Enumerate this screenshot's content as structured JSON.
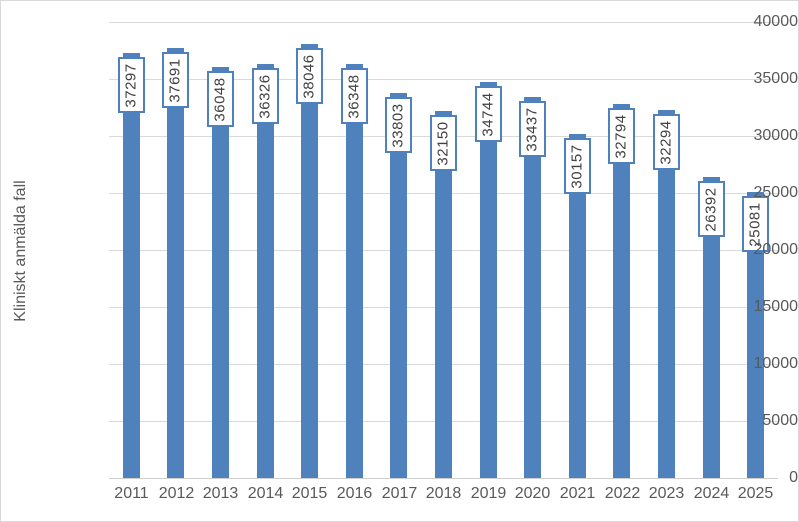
{
  "chart_data": {
    "type": "bar",
    "title": "",
    "xlabel": "",
    "ylabel": "Kliniskt anmälda fall",
    "categories": [
      "2011",
      "2012",
      "2013",
      "2014",
      "2015",
      "2016",
      "2017",
      "2018",
      "2019",
      "2020",
      "2021",
      "2022",
      "2023",
      "2024",
      "2025"
    ],
    "values": [
      37297,
      37691,
      36048,
      36326,
      38046,
      36348,
      33803,
      32150,
      34744,
      33437,
      30157,
      32794,
      32294,
      26392,
      25081
    ],
    "ylim": [
      0,
      40000
    ],
    "yticks": [
      0,
      5000,
      10000,
      15000,
      20000,
      25000,
      30000,
      35000,
      40000
    ],
    "grid": true,
    "legend": "none",
    "colors": {
      "bar_fill": "#4F81BD",
      "label_box_fill": "#FFFFFF",
      "label_box_border": "#4F81BD",
      "label_text": "#404040",
      "gridline": "#D9D9D9",
      "tick_text": "#595959",
      "axis_title_text": "#595959"
    }
  }
}
